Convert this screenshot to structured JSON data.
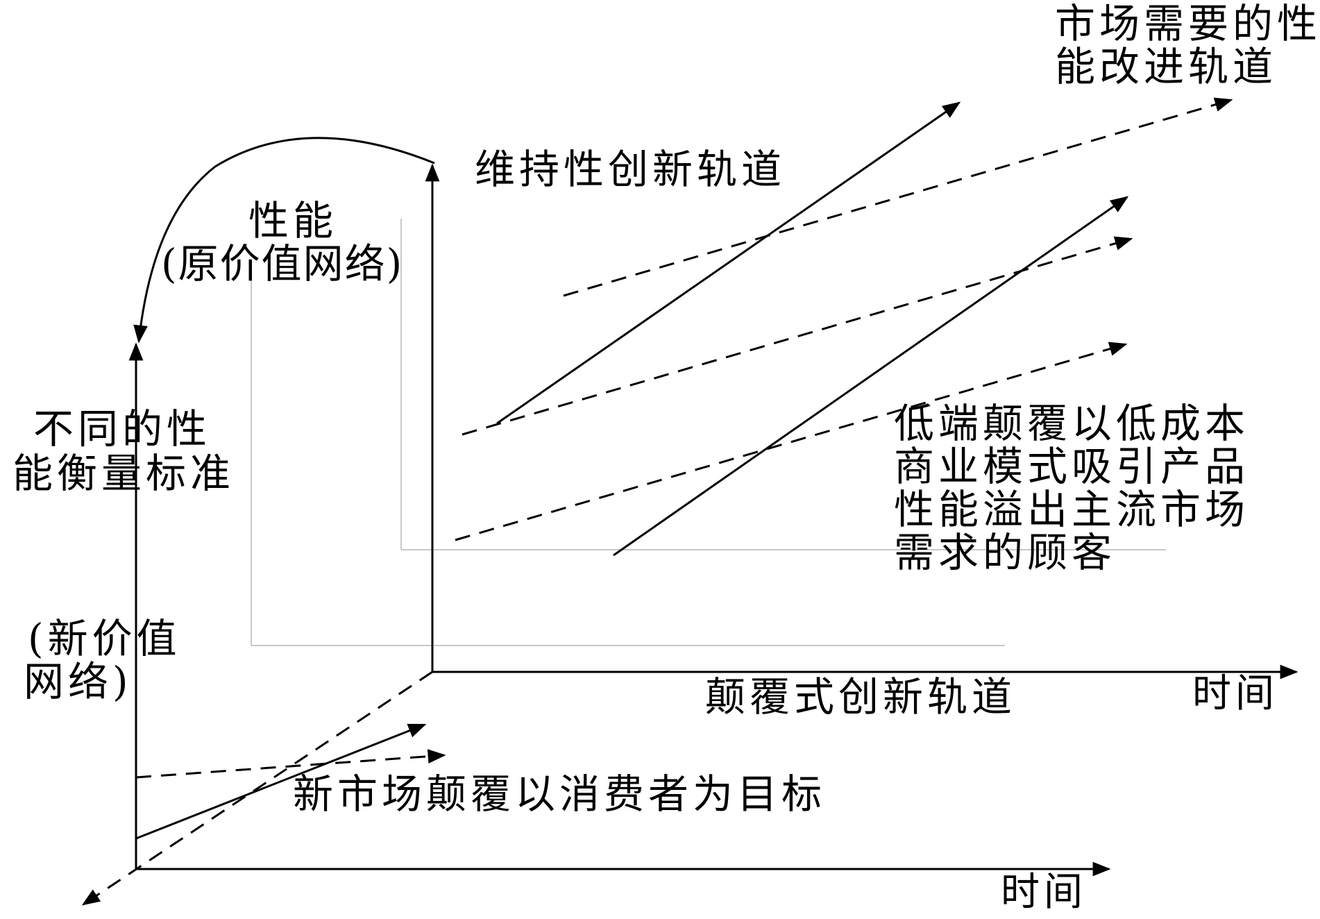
{
  "labels": {
    "market_trajectory_line1": "市场需要的性",
    "market_trajectory_line2": "能改进轨道",
    "sustaining_trajectory": "维持性创新轨道",
    "performance_line1": "性能",
    "performance_line2": "(原价值网络)",
    "different_measure_line1": "不同的性",
    "different_measure_line2": "能衡量标准",
    "new_value_network_line1": "(新价值",
    "new_value_network_line2": "网络)",
    "low_end_line1": "低端颠覆以低成本",
    "low_end_line2": "商业模式吸引产品",
    "low_end_line3": "性能溢出主流市场",
    "low_end_line4": "需求的顾客",
    "disruptive_trajectory": "颠覆式创新轨道",
    "time_upper": "时间",
    "new_market": "新市场颠覆以消费者为目标",
    "time_lower": "时间"
  },
  "colors": {
    "ink": "#000000",
    "faint_grid": "#c8c8c8",
    "background": "#ffffff"
  }
}
